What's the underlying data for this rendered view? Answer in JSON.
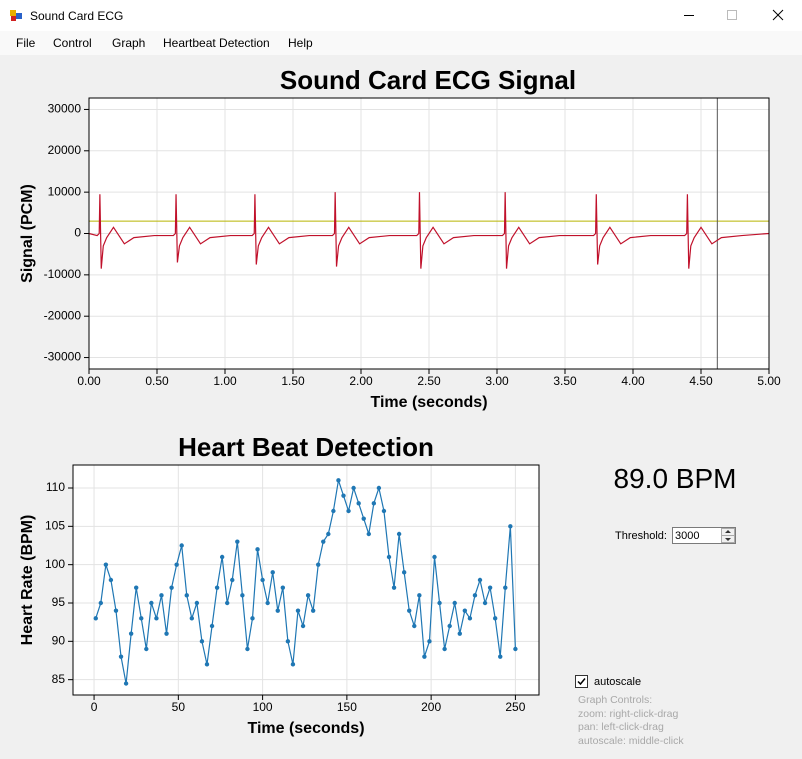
{
  "window": {
    "title": "Sound Card ECG"
  },
  "menu": [
    "File",
    "Control",
    "Graph",
    "Heartbeat Detection",
    "Help"
  ],
  "chart_data": [
    {
      "type": "line",
      "title": "Sound Card ECG Signal",
      "x_label": "Time (seconds)",
      "y_label": "Signal (PCM)",
      "xlim": [
        0,
        5
      ],
      "ylim": [
        -32768,
        32767
      ],
      "xticks": [
        {
          "value": 0,
          "label": "0.00"
        },
        {
          "value": 0.5,
          "label": "0.50"
        },
        {
          "value": 1,
          "label": "1.00"
        },
        {
          "value": 1.5,
          "label": "1.50"
        },
        {
          "value": 2,
          "label": "2.00"
        },
        {
          "value": 2.5,
          "label": "2.50"
        },
        {
          "value": 3,
          "label": "3.00"
        },
        {
          "value": 3.5,
          "label": "3.50"
        },
        {
          "value": 4,
          "label": "4.00"
        },
        {
          "value": 4.5,
          "label": "4.50"
        },
        {
          "value": 5,
          "label": "5.00"
        }
      ],
      "yticks": [
        -30000,
        -20000,
        -10000,
        0,
        10000,
        20000,
        30000
      ],
      "grid": true,
      "markers": false,
      "threshold": 3000,
      "threshold_color": "#b8b400",
      "cursor": 4.62,
      "cursor_color": "#555555",
      "x": [
        0,
        0.06,
        0.075,
        0.08,
        0.09,
        0.105,
        0.13,
        0.18,
        0.26,
        0.33,
        0.48,
        0.62,
        0.635,
        0.64,
        0.65,
        0.665,
        0.69,
        0.74,
        0.82,
        0.89,
        1.04,
        1.2,
        1.215,
        1.22,
        1.23,
        1.245,
        1.27,
        1.32,
        1.4,
        1.47,
        1.62,
        1.79,
        1.805,
        1.81,
        1.82,
        1.835,
        1.86,
        1.91,
        1.99,
        2.06,
        2.21,
        2.41,
        2.425,
        2.43,
        2.44,
        2.455,
        2.48,
        2.53,
        2.61,
        2.68,
        2.83,
        3.04,
        3.055,
        3.06,
        3.07,
        3.085,
        3.11,
        3.16,
        3.24,
        3.31,
        3.46,
        3.71,
        3.725,
        3.73,
        3.74,
        3.755,
        3.78,
        3.83,
        3.91,
        3.98,
        4.13,
        4.38,
        4.395,
        4.4,
        4.41,
        4.425,
        4.45,
        4.5,
        4.58,
        4.65,
        4.8,
        5
      ],
      "series": [
        {
          "name": "ECG",
          "color": "#c0112b",
          "values": [
            0,
            -500,
            0,
            9500,
            -8500,
            -3000,
            -1000,
            1500,
            -2500,
            -1000,
            -500,
            -500,
            0,
            9500,
            -7000,
            -3000,
            -1000,
            1500,
            -2500,
            -1000,
            -500,
            -500,
            0,
            9500,
            -7500,
            -3000,
            -1000,
            1500,
            -2500,
            -1000,
            -500,
            -500,
            0,
            10000,
            -8000,
            -3000,
            -1000,
            1500,
            -2500,
            -1000,
            -500,
            -500,
            0,
            10000,
            -8500,
            -3000,
            -1000,
            1500,
            -2500,
            -1000,
            -500,
            -500,
            0,
            10000,
            -8500,
            -3000,
            -1000,
            1500,
            -2500,
            -1000,
            -500,
            -500,
            0,
            9500,
            -7500,
            -3000,
            -1000,
            1500,
            -2500,
            -1000,
            -500,
            -500,
            0,
            9500,
            -8500,
            -3000,
            -1000,
            1500,
            -2500,
            -1000,
            -500,
            0
          ]
        }
      ]
    },
    {
      "type": "line",
      "title": "Heart Beat Detection",
      "x_label": "Time (seconds)",
      "y_label": "Heart Rate (BPM)",
      "xlim": [
        -12.5,
        264
      ],
      "ylim": [
        83,
        113
      ],
      "xticks": [
        0,
        50,
        100,
        150,
        200,
        250
      ],
      "yticks": [
        85,
        90,
        95,
        100,
        105,
        110
      ],
      "grid": true,
      "markers": true,
      "x": [
        1,
        4,
        7,
        10,
        13,
        16,
        19,
        22,
        25,
        28,
        31,
        34,
        37,
        40,
        43,
        46,
        49,
        52,
        55,
        58,
        61,
        64,
        67,
        70,
        73,
        76,
        79,
        82,
        85,
        88,
        91,
        94,
        97,
        100,
        103,
        106,
        109,
        112,
        115,
        118,
        121,
        124,
        127,
        130,
        133,
        136,
        139,
        142,
        145,
        148,
        151,
        154,
        157,
        160,
        163,
        166,
        169,
        172,
        175,
        178,
        181,
        184,
        187,
        190,
        193,
        196,
        199,
        202,
        205,
        208,
        211,
        214,
        217,
        220,
        223,
        226,
        229,
        232,
        235,
        238,
        241,
        244,
        247,
        250
      ],
      "series": [
        {
          "name": "Heart Rate",
          "color": "#1f77b4",
          "values": [
            93,
            95,
            100,
            98,
            94,
            88,
            84.5,
            91,
            97,
            93,
            89,
            95,
            93,
            96,
            91,
            97,
            100,
            102.5,
            96,
            93,
            95,
            90,
            87,
            92,
            97,
            101,
            95,
            98,
            103,
            96,
            89,
            93,
            102,
            98,
            95,
            99,
            94,
            97,
            90,
            87,
            94,
            92,
            96,
            94,
            100,
            103,
            104,
            107,
            111,
            109,
            107,
            110,
            108,
            106,
            104,
            108,
            110,
            107,
            101,
            97,
            104,
            99,
            94,
            92,
            96,
            88,
            90,
            101,
            95,
            89,
            92,
            95,
            91,
            94,
            93,
            96,
            98,
            95,
            97,
            93,
            88,
            97,
            105,
            89
          ]
        }
      ]
    }
  ],
  "status": {
    "bpm": "89.0 BPM",
    "threshold_label": "Threshold:",
    "threshold": 3000,
    "autoscale": "autoscale",
    "autoscale_checked": true,
    "help": [
      "Graph Controls:",
      "zoom: right-click-drag",
      "pan: left-click-drag",
      "autoscale: middle-click"
    ]
  }
}
